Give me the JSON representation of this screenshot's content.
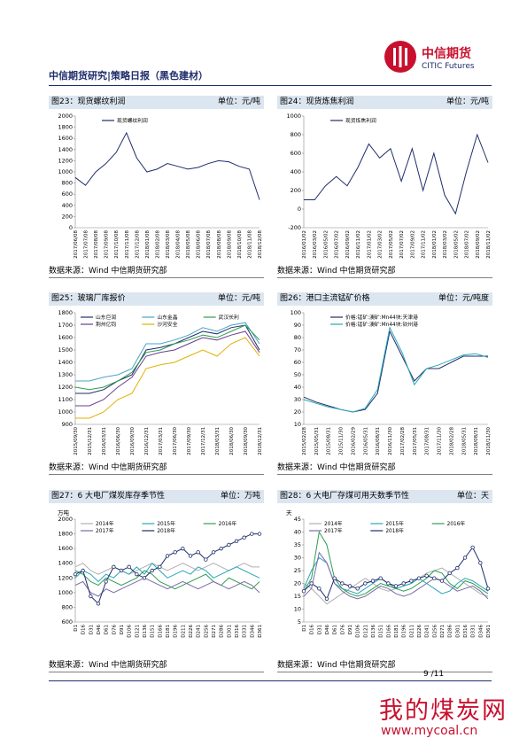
{
  "header": {
    "title": "中信期货研究|策略日报（黑色建材）",
    "logo_cn": "中信期货",
    "logo_en": "CITIC Futures"
  },
  "page_number": "9 /11",
  "watermark": {
    "name": "我的煤炭网",
    "url": "www.mycoal.cn"
  },
  "chart_data": [
    {
      "type": "line",
      "title": "图23：现货螺纹利润",
      "unit": "单位：元/吨",
      "source": "数据来源：Wind 中信期货研究部",
      "categories": [
        "2017/06/08",
        "2017/07/08",
        "2017/08/08",
        "2017/09/08",
        "2017/10/08",
        "2017/11/08",
        "2017/12/08",
        "2018/01/08",
        "2018/02/08",
        "2018/03/08",
        "2018/04/08",
        "2018/05/08",
        "2018/06/08",
        "2018/07/08",
        "2018/08/08",
        "2018/09/08",
        "2018/10/08",
        "2018/11/08",
        "2018/12/08"
      ],
      "series": [
        {
          "name": "现货螺纹利润",
          "color": "#1f2d6b",
          "values": [
            900,
            760,
            1000,
            1150,
            1350,
            1700,
            1250,
            1000,
            1050,
            1150,
            1100,
            1050,
            1080,
            1150,
            1200,
            1180,
            1100,
            1050,
            500
          ]
        }
      ],
      "ylim": [
        0,
        2000
      ],
      "yticks": [
        0,
        200,
        400,
        600,
        800,
        1000,
        1200,
        1400,
        1600,
        1800,
        2000
      ]
    },
    {
      "type": "line",
      "title": "图24：现货炼焦利润",
      "unit": "单位：元/吨",
      "source": "数据来源：Wind 中信期货研究部",
      "categories": [
        "2016/01/02",
        "2016/03/02",
        "2016/05/02",
        "2016/07/02",
        "2016/09/02",
        "2016/11/02",
        "2017/01/02",
        "2017/03/02",
        "2017/05/02",
        "2017/07/02",
        "2017/09/02",
        "2017/11/02",
        "2018/01/02",
        "2018/03/02",
        "2018/05/02",
        "2018/07/02",
        "2018/09/02",
        "2018/11/02"
      ],
      "series": [
        {
          "name": "现货炼焦利润",
          "color": "#1f2d6b",
          "values": [
            100,
            100,
            250,
            350,
            250,
            450,
            700,
            550,
            650,
            300,
            650,
            200,
            600,
            150,
            -50,
            400,
            800,
            500
          ]
        }
      ],
      "ylim": [
        -200,
        1000
      ],
      "yticks": [
        -200,
        0,
        200,
        400,
        600,
        800,
        1000
      ]
    },
    {
      "type": "line",
      "title": "图25：玻璃厂库报价",
      "unit": "单位：元/吨",
      "source": "数据来源：Wind 中信期货研究部",
      "categories": [
        "2015/09/30",
        "2015/12/31",
        "2016/03/31",
        "2016/06/30",
        "2016/09/30",
        "2016/12/31",
        "2017/03/31",
        "2017/06/30",
        "2017/09/30",
        "2017/12/31",
        "2018/03/31",
        "2018/06/30",
        "2018/09/30",
        "2018/12/31"
      ],
      "series": [
        {
          "name": "山东巨润",
          "color": "#1f2d6b",
          "values": [
            1150,
            1150,
            1180,
            1250,
            1300,
            1500,
            1520,
            1550,
            1600,
            1650,
            1630,
            1680,
            1700,
            1500
          ]
        },
        {
          "name": "山东金晶",
          "color": "#4aa3c8",
          "values": [
            1250,
            1250,
            1280,
            1300,
            1350,
            1550,
            1550,
            1580,
            1620,
            1680,
            1650,
            1700,
            1720,
            1550
          ]
        },
        {
          "name": "武汉长利",
          "color": "#2e9e4f",
          "values": [
            1200,
            1180,
            1200,
            1250,
            1320,
            1480,
            1500,
            1550,
            1580,
            1620,
            1600,
            1650,
            1700,
            1580
          ]
        },
        {
          "name": "荆州亿钧",
          "color": "#6a3d8f",
          "values": [
            1050,
            1050,
            1100,
            1200,
            1280,
            1450,
            1480,
            1500,
            1550,
            1600,
            1580,
            1620,
            1650,
            1480
          ]
        },
        {
          "name": "沙河安全",
          "color": "#e0b000",
          "values": [
            950,
            950,
            1000,
            1100,
            1150,
            1350,
            1380,
            1400,
            1450,
            1500,
            1450,
            1550,
            1600,
            1450
          ]
        }
      ],
      "ylim": [
        900,
        1800
      ],
      "yticks": [
        900,
        1000,
        1100,
        1200,
        1300,
        1400,
        1500,
        1600,
        1700,
        1800
      ]
    },
    {
      "type": "line",
      "title": "图26：港口主流锰矿价格",
      "unit": "单位：元/吨度",
      "source": "数据来源：Wind 中信期货研究部",
      "categories": [
        "2015/02/28",
        "2015/05/31",
        "2015/08/31",
        "2015/11/30",
        "2016/02/29",
        "2016/05/31",
        "2016/08/31",
        "2016/11/30",
        "2017/02/28",
        "2017/05/31",
        "2017/08/31",
        "2017/11/30",
        "2018/02/28",
        "2018/05/31",
        "2018/08/31",
        "2018/11/30"
      ],
      "series": [
        {
          "name": "价格:锰矿:澳矿:Mn44块:天津港",
          "color": "#1f2d6b",
          "values": [
            32,
            28,
            25,
            22,
            20,
            22,
            35,
            85,
            65,
            45,
            55,
            55,
            60,
            65,
            65,
            65
          ]
        },
        {
          "name": "价格:锰矿:澳矿:Mn44块:钦州港",
          "color": "#2aa7b8",
          "values": [
            30,
            27,
            24,
            22,
            20,
            23,
            38,
            88,
            68,
            42,
            55,
            58,
            62,
            66,
            67,
            64
          ]
        }
      ],
      "ylim": [
        10,
        100
      ],
      "yticks": [
        10,
        20,
        30,
        40,
        50,
        60,
        70,
        80,
        90,
        100
      ]
    },
    {
      "type": "line",
      "title": "图27：6 大电厂煤炭库存季节性",
      "unit": "单位：万吨",
      "source": "数据来源：Wind 中信期货研究部",
      "ylabel": "万吨",
      "categories": [
        "D1",
        "D16",
        "D31",
        "D46",
        "D61",
        "D76",
        "D91",
        "D106",
        "D121",
        "D136",
        "D151",
        "D166",
        "D181",
        "D196",
        "D211",
        "D226",
        "D241",
        "D256",
        "D271",
        "D286",
        "D301",
        "D316",
        "D331",
        "D346",
        "D361"
      ],
      "series": [
        {
          "name": "2014年",
          "color": "#b0b0b0",
          "values": [
            1350,
            1400,
            1300,
            1250,
            1300,
            1350,
            1300,
            1250,
            1300,
            1350,
            1400,
            1350,
            1300,
            1350,
            1400,
            1350,
            1300,
            1350,
            1400,
            1350,
            1300,
            1350,
            1400,
            1350,
            1350
          ]
        },
        {
          "name": "2015年",
          "color": "#2aa7b8",
          "values": [
            1200,
            1300,
            1250,
            1150,
            1250,
            1200,
            1300,
            1250,
            1350,
            1250,
            1400,
            1300,
            1200,
            1250,
            1300,
            1250,
            1350,
            1300,
            1200,
            1250,
            1300,
            1350,
            1300,
            1250,
            1200
          ]
        },
        {
          "name": "2016年",
          "color": "#2e9e4f",
          "values": [
            1300,
            1250,
            1150,
            1100,
            1200,
            1150,
            1100,
            1150,
            1200,
            1300,
            1250,
            1150,
            1100,
            1050,
            1100,
            1150,
            1200,
            1250,
            1150,
            1100,
            1200,
            1150,
            1100,
            1050,
            1150
          ]
        },
        {
          "name": "2017年",
          "color": "#7b6aa8",
          "values": [
            1100,
            1150,
            1000,
            950,
            1050,
            1000,
            1050,
            1100,
            1150,
            1200,
            1150,
            1100,
            1050,
            1100,
            1150,
            1100,
            1050,
            1100,
            1150,
            1100,
            1050,
            1100,
            1150,
            1100,
            1000
          ]
        },
        {
          "name": "2018年",
          "color": "#1f2d6b",
          "markers": true,
          "values": [
            1250,
            1300,
            950,
            850,
            1150,
            1350,
            1300,
            1350,
            1250,
            1200,
            1300,
            1350,
            1500,
            1550,
            1600,
            1500,
            1550,
            1450,
            1550,
            1600,
            1650,
            1700,
            1750,
            1800,
            1800
          ]
        }
      ],
      "ylim": [
        600,
        2000
      ],
      "yticks": [
        600,
        800,
        1000,
        1200,
        1400,
        1600,
        1800,
        2000
      ]
    },
    {
      "type": "line",
      "title": "图28：6 大电厂存煤可用天数季节性",
      "unit": "单位：天",
      "source": "数据来源：Wind 中信期货研究部",
      "ylabel": "天",
      "categories": [
        "D1",
        "D16",
        "D31",
        "D46",
        "D61",
        "D76",
        "D91",
        "D106",
        "D121",
        "D136",
        "D151",
        "D166",
        "D181",
        "D196",
        "D211",
        "D226",
        "D241",
        "D256",
        "D271",
        "D286",
        "D301",
        "D316",
        "D331",
        "D346",
        "D361"
      ],
      "series": [
        {
          "name": "2014年",
          "color": "#b0b0b0",
          "values": [
            20,
            18,
            15,
            12,
            14,
            16,
            18,
            20,
            22,
            20,
            18,
            17,
            18,
            19,
            20,
            22,
            24,
            25,
            26,
            24,
            22,
            20,
            18,
            16,
            15
          ]
        },
        {
          "name": "2015年",
          "color": "#2aa7b8",
          "values": [
            18,
            25,
            30,
            28,
            20,
            18,
            17,
            16,
            18,
            20,
            22,
            20,
            18,
            19,
            20,
            22,
            20,
            18,
            16,
            17,
            20,
            22,
            21,
            19,
            17
          ]
        },
        {
          "name": "2016年",
          "color": "#2e9e4f",
          "values": [
            17,
            22,
            40,
            35,
            22,
            18,
            16,
            15,
            16,
            18,
            20,
            19,
            18,
            17,
            18,
            20,
            22,
            25,
            24,
            20,
            18,
            21,
            20,
            18,
            16
          ]
        },
        {
          "name": "2017年",
          "color": "#7b6aa8",
          "values": [
            15,
            18,
            32,
            28,
            20,
            17,
            15,
            14,
            15,
            17,
            19,
            18,
            16,
            15,
            16,
            18,
            20,
            22,
            21,
            19,
            17,
            18,
            19,
            17,
            14
          ]
        },
        {
          "name": "2018年",
          "color": "#1f2d6b",
          "markers": true,
          "values": [
            17,
            20,
            18,
            14,
            22,
            20,
            19,
            18,
            20,
            21,
            22,
            20,
            19,
            20,
            21,
            22,
            23,
            22,
            21,
            24,
            26,
            30,
            34,
            28,
            18
          ]
        }
      ],
      "ylim": [
        5,
        45
      ],
      "yticks": [
        5,
        10,
        15,
        20,
        25,
        30,
        35,
        40,
        45
      ]
    }
  ]
}
